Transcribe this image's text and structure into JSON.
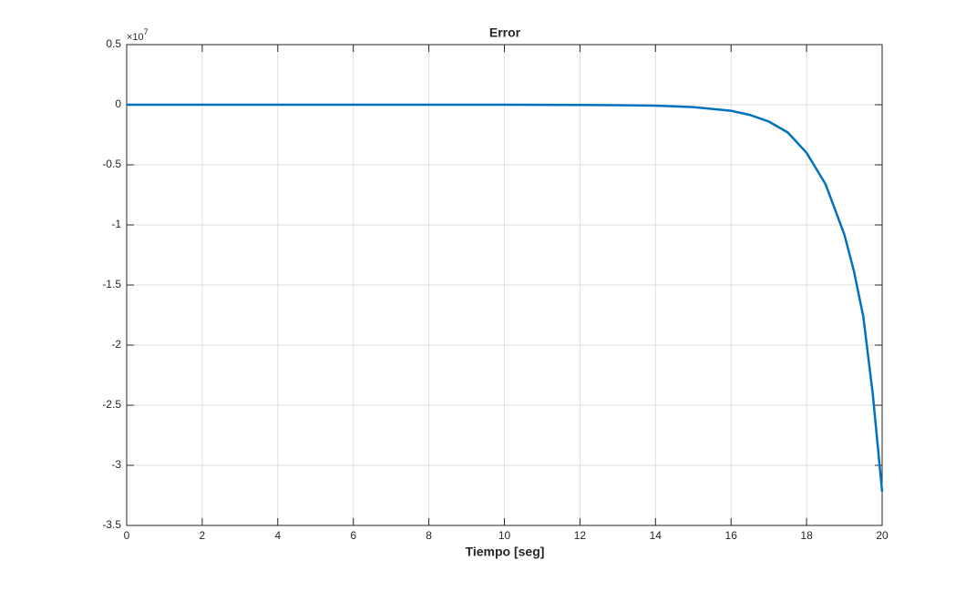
{
  "chart_data": {
    "type": "line",
    "title": "Error",
    "xlabel": "Tiempo [seg]",
    "y_multiplier": {
      "base": "×10",
      "power": "7"
    },
    "x": [
      0,
      2,
      4,
      6,
      8,
      10,
      12,
      13,
      14,
      15,
      16,
      16.5,
      17,
      17.5,
      18,
      18.5,
      19,
      19.25,
      19.5,
      19.75,
      20
    ],
    "series": [
      {
        "color": "#0072bd",
        "values": [
          0,
          0,
          0,
          0,
          0,
          0,
          -0.002,
          -0.004,
          -0.008,
          -0.02,
          -0.05,
          -0.085,
          -0.14,
          -0.23,
          -0.4,
          -0.66,
          -1.08,
          -1.38,
          -1.76,
          -2.4,
          -3.22
        ]
      }
    ],
    "xlim": [
      0,
      20
    ],
    "xticks": [
      0,
      2,
      4,
      6,
      8,
      10,
      12,
      14,
      16,
      18,
      20
    ],
    "ylim": [
      -3.5,
      0.5
    ],
    "yticks": [
      0.5,
      0,
      -0.5,
      -1,
      -1.5,
      -2,
      -2.5,
      -3,
      -3.5
    ],
    "grid": true
  }
}
